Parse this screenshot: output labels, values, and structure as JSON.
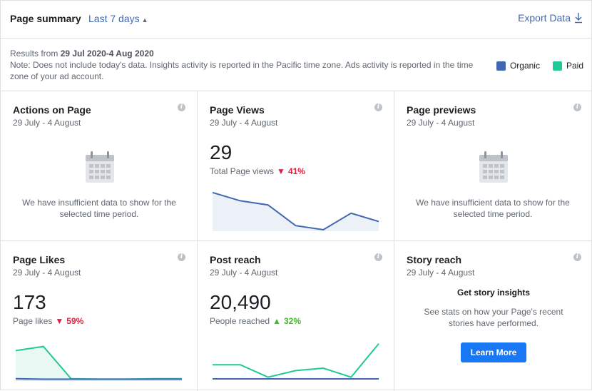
{
  "header": {
    "title": "Page summary",
    "range_label": "Last 7 days",
    "export_label": "Export Data"
  },
  "notice": {
    "results_prefix": "Results from",
    "results_range": "29 Jul 2020-4 Aug 2020",
    "note": "Note: Does not include today's data. Insights activity is reported in the Pacific time zone. Ads activity is reported in the time zone of your ad account."
  },
  "legend": [
    {
      "label": "Organic",
      "color": "#4267b2"
    },
    {
      "label": "Paid",
      "color": "#20c997"
    }
  ],
  "cards": {
    "actions": {
      "title": "Actions on Page",
      "date": "29 July - 4 August",
      "empty": "We have insufficient data to show for the selected time period."
    },
    "views": {
      "title": "Page Views",
      "date": "29 July - 4 August",
      "value": "29",
      "label": "Total Page views",
      "change": "41%",
      "trend": "down"
    },
    "previews": {
      "title": "Page previews",
      "date": "29 July - 4 August",
      "empty": "We have insufficient data to show for the selected time period."
    },
    "likes": {
      "title": "Page Likes",
      "date": "29 July - 4 August",
      "value": "173",
      "label": "Page likes",
      "change": "59%",
      "trend": "down"
    },
    "reach": {
      "title": "Post reach",
      "date": "29 July - 4 August",
      "value": "20,490",
      "label": "People reached",
      "change": "32%",
      "trend": "up"
    },
    "story": {
      "title": "Story reach",
      "date": "29 July - 4 August",
      "heading": "Get story insights",
      "text": "See stats on how your Page's recent stories have performed.",
      "button": "Learn More"
    }
  },
  "chart_data": [
    {
      "type": "area",
      "name_ref": "Page Views",
      "x": [
        1,
        2,
        3,
        4,
        5,
        6,
        7
      ],
      "series": [
        {
          "name": "Organic",
          "values": [
            9,
            7,
            6,
            1,
            0,
            4,
            2
          ]
        }
      ],
      "ylim": [
        0,
        10
      ]
    },
    {
      "type": "area",
      "name_ref": "Page Likes",
      "x": [
        1,
        2,
        3,
        4,
        5,
        6,
        7
      ],
      "series": [
        {
          "name": "Paid",
          "values": [
            70,
            80,
            2,
            1,
            1,
            2,
            2
          ]
        },
        {
          "name": "Organic",
          "values": [
            2,
            1,
            1,
            1,
            1,
            1,
            1
          ]
        }
      ],
      "ylim": [
        0,
        100
      ]
    },
    {
      "type": "line",
      "name_ref": "Post reach",
      "x": [
        1,
        2,
        3,
        4,
        5,
        6,
        7
      ],
      "series": [
        {
          "name": "Paid",
          "values": [
            4300,
            4300,
            700,
            2600,
            3300,
            700,
            10400
          ]
        },
        {
          "name": "Organic",
          "values": [
            200,
            200,
            200,
            200,
            200,
            200,
            200
          ]
        }
      ],
      "ylim": [
        0,
        12000
      ]
    }
  ]
}
